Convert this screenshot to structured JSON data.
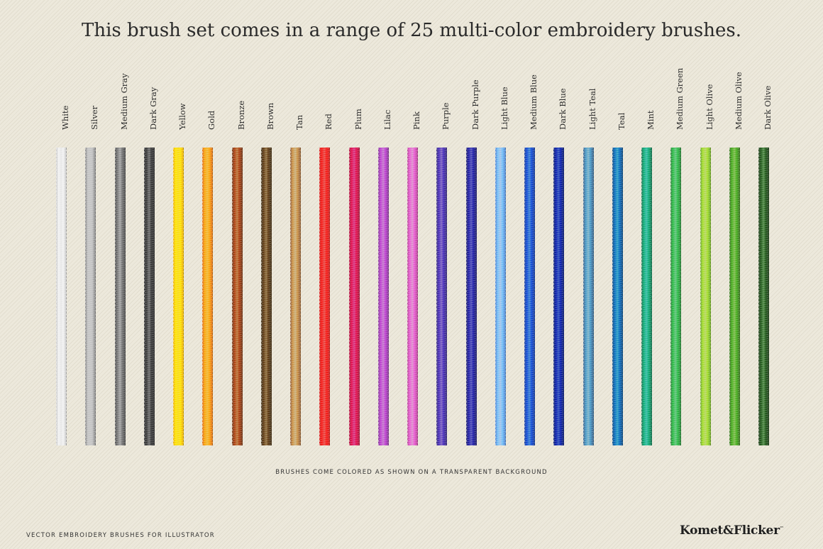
{
  "headline": "This brush set comes in a range of 25 multi-color embroidery brushes.",
  "brushes": [
    {
      "label": "White",
      "color": "#d9d9d9"
    },
    {
      "label": "Silver",
      "color": "#a7a7a7"
    },
    {
      "label": "Medium Gray",
      "color": "#7b7b7b"
    },
    {
      "label": "Dark Gray",
      "color": "#555555"
    },
    {
      "label": "Yellow",
      "color": "#f2c616"
    },
    {
      "label": "Gold",
      "color": "#e8952a"
    },
    {
      "label": "Bronze",
      "color": "#9a5a2e"
    },
    {
      "label": "Brown",
      "color": "#6e5632"
    },
    {
      "label": "Tan",
      "color": "#b08a5e"
    },
    {
      "label": "Red",
      "color": "#df3a36"
    },
    {
      "label": "Plum",
      "color": "#c42c64"
    },
    {
      "label": "Lilac",
      "color": "#a65bb4"
    },
    {
      "label": "Pink",
      "color": "#cc6cb4"
    },
    {
      "label": "Purple",
      "color": "#5f4ba2"
    },
    {
      "label": "Dark Purple",
      "color": "#3e3d96"
    },
    {
      "label": "Light Blue",
      "color": "#7aa6e0"
    },
    {
      "label": "Medium Blue",
      "color": "#2f62b8"
    },
    {
      "label": "Dark Blue",
      "color": "#253e9a"
    },
    {
      "label": "Light Teal",
      "color": "#5f8dab"
    },
    {
      "label": "Teal",
      "color": "#2477a6"
    },
    {
      "label": "Mint",
      "color": "#2b9a7c"
    },
    {
      "label": "Medium Green",
      "color": "#4aa45e"
    },
    {
      "label": "Light Olive",
      "color": "#94c04a"
    },
    {
      "label": "Medium Olive",
      "color": "#5f9a3c"
    },
    {
      "label": "Dark Olive",
      "color": "#3f6a38"
    }
  ],
  "note": "BRUSHES COME COLORED AS SHOWN ON A TRANSPARENT BACKGROUND",
  "footer_text": "VECTOR EMBROIDERY BRUSHES FOR ILLUSTRATOR",
  "logo": "Komet&Flicker",
  "logo_mark": "™"
}
